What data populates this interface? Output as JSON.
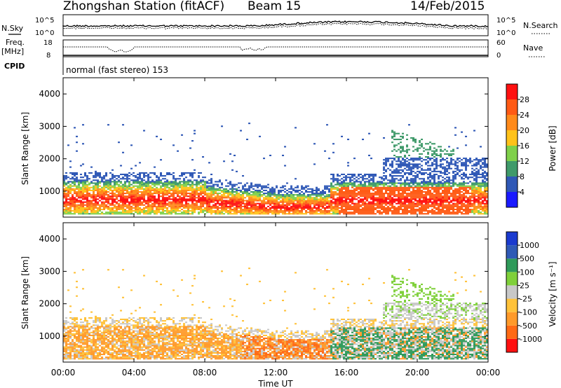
{
  "header": {
    "station": "Zhongshan Station (fitACF)",
    "beam": "Beam 15",
    "date": "14/Feb/2015"
  },
  "cpid_text": "normal (fast stereo) 153",
  "chart_data": [
    {
      "type": "line",
      "name": "noise",
      "left_label": "N.Sky",
      "right_label": "N.Search",
      "left_ticks": [
        "10^5",
        "10^0"
      ],
      "right_ticks": [
        "10^5",
        "10^0"
      ]
    },
    {
      "type": "line",
      "name": "freq-nave",
      "left_label": "Freq.",
      "left_unit": "[MHz]",
      "left_ticks": [
        "18",
        "8"
      ],
      "right_label": "Nave",
      "right_ticks": [
        "60",
        "0"
      ],
      "cpid_label": "CPID"
    },
    {
      "type": "heatmap",
      "name": "power",
      "ylabel": "Slant Range [km]",
      "yticks": [
        1000,
        2000,
        3000,
        4000
      ],
      "ylim": [
        200,
        4500
      ],
      "colorbar_label": "Power [dB]",
      "colorbar_ticks": [
        "4",
        "8",
        "12",
        "16",
        "20",
        "24",
        "28"
      ],
      "colorbar_colors": [
        "#1a1aff",
        "#2f58b6",
        "#3f9a6a",
        "#7fd04a",
        "#ffc21a",
        "#ff8a1a",
        "#ff5a14",
        "#ff1010"
      ]
    },
    {
      "type": "heatmap",
      "name": "velocity",
      "ylabel": "Slant Range [km]",
      "yticks": [
        1000,
        2000,
        3000,
        4000
      ],
      "ylim": [
        200,
        4500
      ],
      "colorbar_label": "Velocity [m s⁻¹]",
      "colorbar_ticks": [
        "-1000",
        "-500",
        "-100",
        "-25",
        "25",
        "100",
        "500",
        "1000"
      ],
      "colorbar_colors": [
        "#ff1010",
        "#ff6a14",
        "#ff9a2a",
        "#ffc23a",
        "#c8c8c8",
        "#7fd03a",
        "#2f9a5a",
        "#2f5ab6",
        "#1a3acf"
      ]
    }
  ],
  "xaxis": {
    "label": "Time UT",
    "ticks": [
      "00:00",
      "04:00",
      "08:00",
      "12:00",
      "16:00",
      "20:00",
      "00:00"
    ]
  },
  "colors": {
    "power_sky": "#2f58b6",
    "power_core": "#ff1010",
    "velocity_neg": "#ff8a1a",
    "velocity_pos": "#3f9a5a",
    "velocity_mid": "#c8c8c8"
  }
}
